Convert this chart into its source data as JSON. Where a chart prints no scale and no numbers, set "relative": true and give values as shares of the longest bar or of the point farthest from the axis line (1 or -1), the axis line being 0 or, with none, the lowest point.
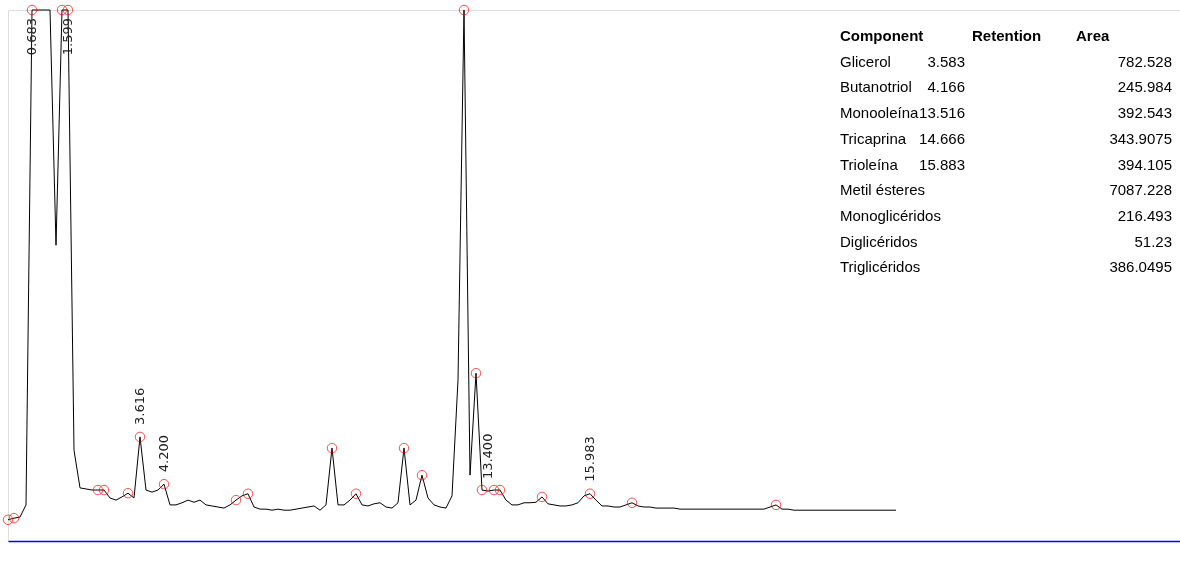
{
  "chart_data": {
    "type": "line",
    "relative": true,
    "categories": [
      null,
      null,
      null,
      null,
      null,
      null,
      null,
      null,
      null,
      null,
      null,
      null,
      null,
      null,
      null,
      null,
      null,
      null,
      null,
      null,
      null,
      null,
      null,
      null,
      null,
      null,
      null,
      null,
      null,
      null,
      null,
      null,
      null,
      null,
      null,
      null,
      null,
      null,
      null,
      null,
      null,
      null,
      null,
      null,
      null,
      null,
      null,
      null,
      null,
      null,
      null,
      null,
      null,
      null,
      null,
      null,
      null,
      null,
      null,
      null,
      null,
      null,
      null,
      null,
      null,
      null,
      null,
      null,
      null,
      null,
      null,
      null,
      null,
      null,
      null,
      null,
      null,
      null,
      null,
      null,
      null,
      null,
      null,
      null,
      null,
      null,
      null,
      null,
      null,
      null,
      null,
      null,
      null,
      null,
      null,
      null,
      null,
      null,
      null,
      null,
      null,
      null,
      null,
      null,
      null,
      null,
      null,
      null,
      null,
      null,
      null,
      null,
      null,
      null,
      null,
      null,
      null,
      null,
      null,
      null,
      null,
      null,
      null,
      null,
      null,
      null,
      null,
      null,
      null,
      null,
      null,
      null,
      null,
      null,
      null,
      null,
      null,
      null,
      null,
      null,
      null,
      null,
      null,
      null,
      null,
      null,
      null,
      null,
      null
    ],
    "series": [
      {
        "color": "#000000",
        "values": [
          0.04,
          0.043,
          0.045,
          0.068,
          1,
          1,
          1,
          1,
          0.557,
          1,
          1,
          0.171,
          0.1,
          0.098,
          0.096,
          0.096,
          0.096,
          0.081,
          0.077,
          0.083,
          0.09,
          0.081,
          0.196,
          0.096,
          0.092,
          0.096,
          0.107,
          0.068,
          0.068,
          0.072,
          0.077,
          0.073,
          0.077,
          0.068,
          0.066,
          0.064,
          0.062,
          0.068,
          0.077,
          0.085,
          0.089,
          0.064,
          0.06,
          0.06,
          0.058,
          0.06,
          0.058,
          0.058,
          0.06,
          0.062,
          0.064,
          0.066,
          0.058,
          0.068,
          0.175,
          0.068,
          0.068,
          0.077,
          0.089,
          0.068,
          0.066,
          0.07,
          0.072,
          0.064,
          0.062,
          0.072,
          0.175,
          0.068,
          0.077,
          0.124,
          0.081,
          0.068,
          0.064,
          0.062,
          0.085,
          0.303,
          1,
          0.124,
          0.316,
          0.096,
          0.094,
          0.096,
          0.096,
          0.077,
          0.068,
          0.068,
          0.072,
          0.072,
          0.073,
          0.083,
          0.07,
          0.068,
          0.066,
          0.066,
          0.068,
          0.072,
          0.085,
          0.089,
          0.077,
          0.066,
          0.066,
          0.064,
          0.064,
          0.068,
          0.072,
          0.066,
          0.064,
          0.064,
          0.062,
          0.062,
          0.062,
          0.062,
          0.06,
          0.06,
          0.06,
          0.06,
          0.06,
          0.06,
          0.06,
          0.06,
          0.06,
          0.06,
          0.06,
          0.06,
          0.06,
          0.06,
          0.06,
          0.064,
          0.068,
          0.06,
          0.06,
          0.058,
          0.058,
          0.058,
          0.058,
          0.058,
          0.058,
          0.058,
          0.058,
          0.058,
          0.058,
          0.058,
          0.058,
          0.058,
          0.058,
          0.058,
          0.058,
          0.058,
          0.058
        ]
      }
    ],
    "annotations": [
      "0.683",
      "1.599",
      "3.616",
      "4.200",
      "13.400",
      "15.983",
      "Component",
      "Retention",
      "Area",
      "Glicerol",
      "3.583",
      "782.528",
      "Butanotriol",
      "4.166",
      "245.984",
      "Monooleína",
      "13.516",
      "392.543",
      "Tricaprina",
      "14.666",
      "343.9075",
      "Trioleína",
      "15.883",
      "394.105",
      "Metil ésteres",
      "7087.228",
      "Monoglicéridos",
      "216.493",
      "Diglicéridos",
      "51.23",
      "Triglicéridos",
      "386.0495"
    ]
  }
}
